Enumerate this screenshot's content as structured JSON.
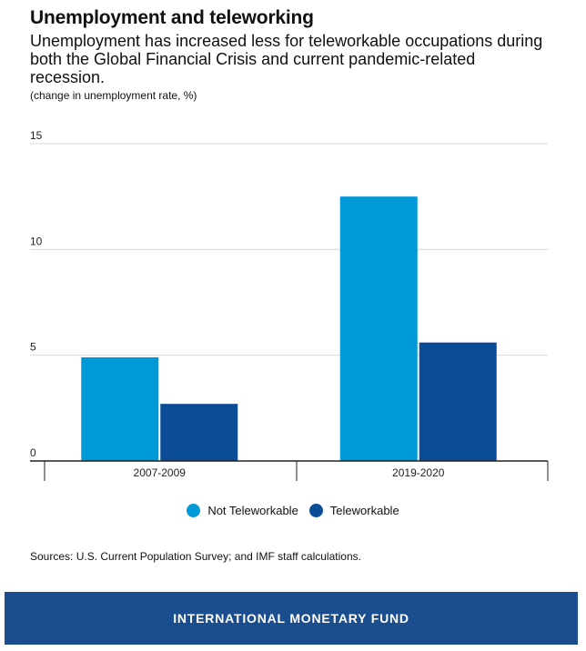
{
  "title": "Unemployment and teleworking",
  "subtitle": "Unemployment has increased less for teleworkable occupations during both the Global Financial Crisis and current pandemic-related recession.",
  "unit_note": "(change in unemployment rate, %)",
  "source": "Sources: U.S. Current Population Survey; and IMF staff calculations.",
  "footer": {
    "text": "INTERNATIONAL MONETARY FUND",
    "color": "#1b4e8f"
  },
  "chart_data": {
    "type": "bar",
    "categories": [
      "2007-2009",
      "2019-2020"
    ],
    "series": [
      {
        "name": "Not Teleworkable",
        "color": "#0099d8",
        "values": [
          4.9,
          12.5
        ]
      },
      {
        "name": "Teleworkable",
        "color": "#0a4c96",
        "values": [
          2.7,
          5.6
        ]
      }
    ],
    "ylim": [
      0,
      15
    ],
    "yticks": [
      0,
      5,
      10,
      15
    ],
    "grid": true,
    "legend": "bottom-center"
  }
}
